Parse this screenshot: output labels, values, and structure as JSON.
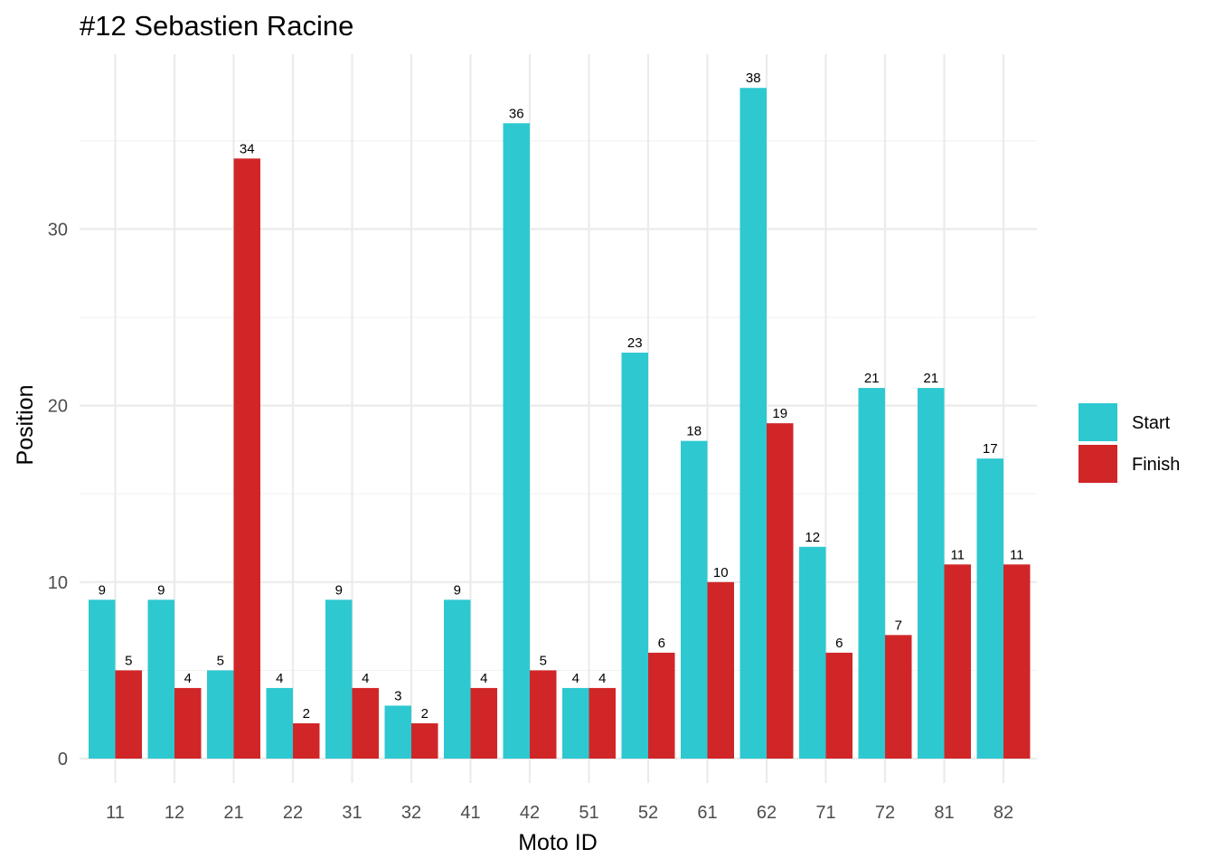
{
  "chart_data": {
    "type": "bar",
    "title": "#12 Sebastien Racine",
    "xlabel": "Moto ID",
    "ylabel": "Position",
    "categories": [
      "11",
      "12",
      "21",
      "22",
      "31",
      "32",
      "41",
      "42",
      "51",
      "52",
      "61",
      "62",
      "71",
      "72",
      "81",
      "82"
    ],
    "series": [
      {
        "name": "Start",
        "color": "#2ec8d1",
        "values": [
          9,
          9,
          5,
          4,
          9,
          3,
          9,
          36,
          4,
          23,
          18,
          38,
          12,
          21,
          21,
          17
        ]
      },
      {
        "name": "Finish",
        "color": "#d12628",
        "values": [
          5,
          4,
          34,
          2,
          4,
          2,
          4,
          5,
          4,
          6,
          10,
          19,
          6,
          7,
          11,
          11
        ]
      }
    ],
    "ylim": [
      0,
      40
    ],
    "yticks": [
      0,
      10,
      20,
      30
    ],
    "grid": true,
    "legend_position": "right",
    "data_labels": true
  }
}
